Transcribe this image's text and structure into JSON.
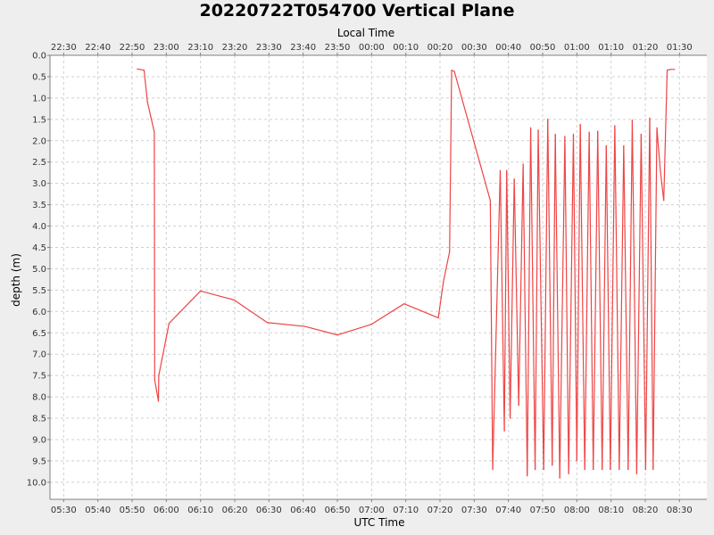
{
  "chart_data": {
    "type": "line",
    "title": "20220722T054700 Vertical Plane",
    "xlabel": "UTC Time",
    "x2label": "Local Time",
    "ylabel": "depth (m)",
    "y_inverted": true,
    "ylim": [
      0.0,
      10.4
    ],
    "xlim": [
      "05:26",
      "08:38"
    ],
    "grid": true,
    "colors": {
      "series": "#ee4444",
      "background": "#eeeeee",
      "plot": "#ffffff"
    },
    "x_ticks": [
      "05:30",
      "05:40",
      "05:50",
      "06:00",
      "06:10",
      "06:20",
      "06:30",
      "06:40",
      "06:50",
      "07:00",
      "07:10",
      "07:20",
      "07:30",
      "07:40",
      "07:50",
      "08:00",
      "08:10",
      "08:20",
      "08:30"
    ],
    "x2_ticks": [
      "22:30",
      "22:40",
      "22:50",
      "23:00",
      "23:10",
      "23:20",
      "23:30",
      "23:40",
      "23:50",
      "00:00",
      "00:10",
      "00:20",
      "00:30",
      "00:40",
      "00:50",
      "01:00",
      "01:10",
      "01:20",
      "01:30"
    ],
    "y_ticks": [
      "0.0",
      "0.5",
      "1.0",
      "1.5",
      "2.0",
      "2.5",
      "3.0",
      "3.5",
      "4.0",
      "4.5",
      "5.0",
      "5.5",
      "6.0",
      "6.5",
      "7.0",
      "7.5",
      "8.0",
      "8.5",
      "9.0",
      "9.5",
      "10.0"
    ],
    "series": [
      {
        "x": [
          "05:51.5",
          "05:53.5",
          "05:54.5",
          "05:56.5",
          "05:56.6",
          "05:57.7",
          "05:57.8",
          "06:00.8",
          "06:10.0",
          "06:19.8",
          "06:29.5",
          "06:40.5",
          "06:50.0",
          "07:00.0",
          "07:09.5",
          "07:19.5",
          "07:21.0",
          "07:22.8",
          "07:23.4",
          "07:24.2",
          "07:34.7",
          "07:35.4",
          "07:37.6",
          "07:38.8",
          "07:39.5",
          "07:40.5",
          "07:41.7",
          "07:43.0",
          "07:44.3",
          "07:45.5",
          "07:46.5",
          "07:47.8",
          "07:48.7",
          "07:50.3",
          "07:51.5",
          "07:52.8",
          "07:53.7",
          "07:55.0",
          "07:56.5",
          "07:57.6",
          "07:59.0",
          "08:00.0",
          "08:01.0",
          "08:02.3",
          "08:03.6",
          "08:04.8",
          "08:06.1",
          "08:07.4",
          "08:08.6",
          "08:09.8",
          "08:11.1",
          "08:12.4",
          "08:13.7",
          "08:15.0",
          "08:16.2",
          "08:17.5",
          "08:18.8",
          "08:20.1",
          "08:21.3",
          "08:22.3",
          "08:23.4",
          "08:24.4",
          "08:25.4",
          "08:26.4",
          "08:27.4",
          "08:28.6"
        ],
        "y": [
          0.32,
          0.35,
          1.1,
          1.8,
          7.6,
          8.1,
          7.5,
          6.28,
          5.52,
          5.73,
          6.26,
          6.35,
          6.55,
          6.3,
          5.82,
          6.15,
          5.3,
          4.6,
          0.35,
          0.38,
          3.4,
          9.7,
          2.7,
          8.8,
          2.7,
          8.5,
          2.9,
          8.2,
          2.55,
          9.85,
          1.7,
          9.7,
          1.75,
          9.7,
          1.5,
          9.6,
          1.85,
          9.9,
          1.9,
          9.8,
          1.85,
          9.5,
          1.62,
          9.7,
          1.8,
          9.7,
          1.78,
          9.7,
          2.12,
          9.7,
          1.65,
          9.7,
          2.12,
          9.7,
          1.52,
          9.8,
          1.85,
          9.7,
          1.47,
          9.7,
          1.7,
          2.7,
          3.4,
          0.35,
          0.33,
          0.33
        ]
      }
    ]
  }
}
